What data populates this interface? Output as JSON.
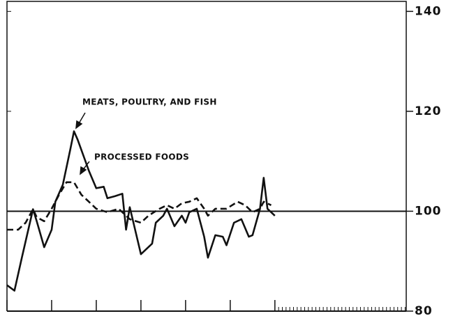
{
  "chart_data": {
    "type": "line",
    "annotations": [
      "MEATS, POULTRY, AND FISH",
      "PROCESSED FOODS"
    ],
    "series": [
      {
        "name": "MEATS, POULTRY, AND FISH",
        "color": "#111111",
        "dash": "solid",
        "x": [
          0,
          2,
          4,
          7,
          8,
          10,
          12,
          13,
          15,
          17,
          18,
          19,
          21,
          22,
          24,
          26,
          27,
          29,
          31,
          32,
          33,
          34,
          36,
          38,
          39,
          40,
          42,
          43,
          45,
          47,
          48,
          49,
          51,
          53,
          54,
          56,
          58,
          59,
          61,
          63,
          65,
          66,
          68,
          69,
          70,
          72
        ],
        "values": [
          85.2,
          84.1,
          90.7,
          100.4,
          98.0,
          92.8,
          96.3,
          101.9,
          105.3,
          112.3,
          116.0,
          114.3,
          110.2,
          108.1,
          104.6,
          104.9,
          102.6,
          103.0,
          103.5,
          96.3,
          100.8,
          97.7,
          91.4,
          92.8,
          93.5,
          97.7,
          99.1,
          100.5,
          97.0,
          99.1,
          97.7,
          99.8,
          100.5,
          94.9,
          90.7,
          95.2,
          94.9,
          93.2,
          97.7,
          98.4,
          94.9,
          95.2,
          100.5,
          106.7,
          100.5,
          99.1
        ]
      },
      {
        "name": "PROCESSED FOODS",
        "color": "#111111",
        "dash": "dashed",
        "x": [
          0,
          3,
          5,
          7,
          8,
          10,
          12,
          14,
          16,
          18,
          20,
          22,
          24,
          27,
          30,
          33,
          36,
          38,
          41,
          43,
          45,
          47,
          49,
          51,
          53,
          54,
          56,
          59,
          62,
          64,
          66,
          68,
          69,
          71
        ],
        "values": [
          96.3,
          96.3,
          97.7,
          100.4,
          98.8,
          98.0,
          100.5,
          103.3,
          105.8,
          105.8,
          103.3,
          101.9,
          100.5,
          99.8,
          100.5,
          98.4,
          97.7,
          99.1,
          100.5,
          101.2,
          100.5,
          101.6,
          101.9,
          102.6,
          100.5,
          99.1,
          100.5,
          100.5,
          101.9,
          101.2,
          99.8,
          100.5,
          101.9,
          101.2
        ]
      }
    ],
    "reference_line": 100,
    "xlim": [
      0,
      107.3
    ],
    "xticks": [
      0,
      12,
      24,
      36,
      48,
      60,
      72
    ],
    "xminorticks": [
      73,
      74,
      75,
      76,
      77,
      78,
      79,
      80,
      81,
      82,
      83,
      84,
      85,
      86,
      87,
      88,
      89,
      90,
      91,
      92,
      93,
      94,
      95,
      96,
      97,
      98,
      99,
      100,
      101,
      102,
      103,
      104,
      105,
      106,
      107
    ],
    "ylim": [
      80,
      142
    ],
    "yticks": [
      80,
      100,
      120,
      140
    ],
    "yaxis_side": "right"
  }
}
